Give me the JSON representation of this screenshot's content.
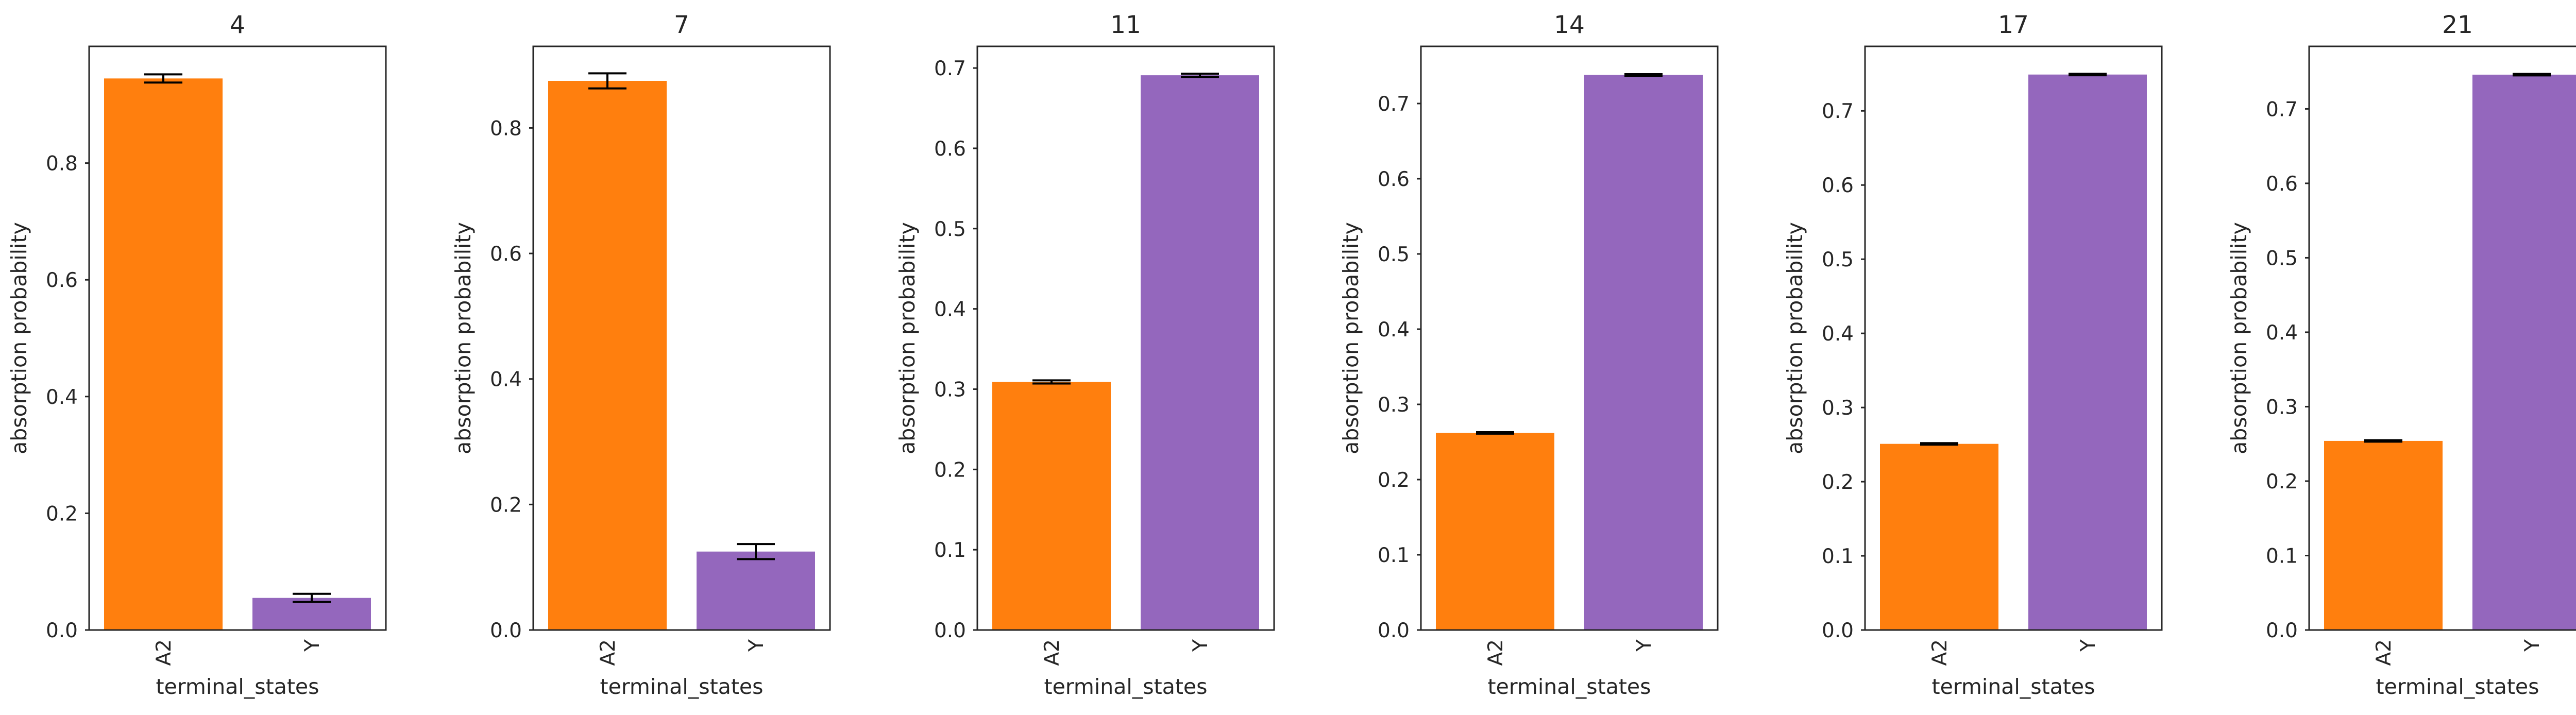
{
  "colors": {
    "A2": "#ff7f0e",
    "Y": "#9467bd",
    "axes": "#262626",
    "errorbar": "#000000",
    "background": "#ffffff"
  },
  "chart_data": [
    {
      "type": "bar",
      "title": "4",
      "xlabel": "terminal_states",
      "ylabel": "absorption probability",
      "categories": [
        "A2",
        "Y"
      ],
      "values": [
        0.945,
        0.055
      ],
      "errors": [
        0.007,
        0.007
      ],
      "ylim": [
        0,
        1.0
      ],
      "yticks": [
        0.0,
        0.2,
        0.4,
        0.6,
        0.8
      ],
      "ytick_labels": [
        "0.0",
        "0.2",
        "0.4",
        "0.6",
        "0.8"
      ],
      "grid": false,
      "legend": "none"
    },
    {
      "type": "bar",
      "title": "7",
      "xlabel": "terminal_states",
      "ylabel": "absorption probability",
      "categories": [
        "A2",
        "Y"
      ],
      "values": [
        0.875,
        0.125
      ],
      "errors": [
        0.012,
        0.012
      ],
      "ylim": [
        0,
        0.93
      ],
      "yticks": [
        0.0,
        0.2,
        0.4,
        0.6,
        0.8
      ],
      "ytick_labels": [
        "0.0",
        "0.2",
        "0.4",
        "0.6",
        "0.8"
      ],
      "grid": false,
      "legend": "none"
    },
    {
      "type": "bar",
      "title": "11",
      "xlabel": "terminal_states",
      "ylabel": "absorption probability",
      "categories": [
        "A2",
        "Y"
      ],
      "values": [
        0.309,
        0.691
      ],
      "errors": [
        0.002,
        0.002
      ],
      "ylim": [
        0,
        0.727
      ],
      "yticks": [
        0.0,
        0.1,
        0.2,
        0.3,
        0.4,
        0.5,
        0.6,
        0.7
      ],
      "ytick_labels": [
        "0.0",
        "0.1",
        "0.2",
        "0.3",
        "0.4",
        "0.5",
        "0.6",
        "0.7"
      ],
      "grid": false,
      "legend": "none"
    },
    {
      "type": "bar",
      "title": "14",
      "xlabel": "terminal_states",
      "ylabel": "absorption probability",
      "categories": [
        "A2",
        "Y"
      ],
      "values": [
        0.262,
        0.738
      ],
      "errors": [
        0.001,
        0.001
      ],
      "ylim": [
        0,
        0.776
      ],
      "yticks": [
        0.0,
        0.1,
        0.2,
        0.3,
        0.4,
        0.5,
        0.6,
        0.7
      ],
      "ytick_labels": [
        "0.0",
        "0.1",
        "0.2",
        "0.3",
        "0.4",
        "0.5",
        "0.6",
        "0.7"
      ],
      "grid": false,
      "legend": "none"
    },
    {
      "type": "bar",
      "title": "17",
      "xlabel": "terminal_states",
      "ylabel": "absorption probability",
      "categories": [
        "A2",
        "Y"
      ],
      "values": [
        0.251,
        0.749
      ],
      "errors": [
        0.001,
        0.001
      ],
      "ylim": [
        0,
        0.787
      ],
      "yticks": [
        0.0,
        0.1,
        0.2,
        0.3,
        0.4,
        0.5,
        0.6,
        0.7
      ],
      "ytick_labels": [
        "0.0",
        "0.1",
        "0.2",
        "0.3",
        "0.4",
        "0.5",
        "0.6",
        "0.7"
      ],
      "grid": false,
      "legend": "none"
    },
    {
      "type": "bar",
      "title": "21",
      "xlabel": "terminal_states",
      "ylabel": "absorption probability",
      "categories": [
        "A2",
        "Y"
      ],
      "values": [
        0.254,
        0.746
      ],
      "errors": [
        0.001,
        0.001
      ],
      "ylim": [
        0,
        0.784
      ],
      "yticks": [
        0.0,
        0.1,
        0.2,
        0.3,
        0.4,
        0.5,
        0.6,
        0.7
      ],
      "ytick_labels": [
        "0.0",
        "0.1",
        "0.2",
        "0.3",
        "0.4",
        "0.5",
        "0.6",
        "0.7"
      ],
      "grid": false,
      "legend": "none"
    }
  ]
}
